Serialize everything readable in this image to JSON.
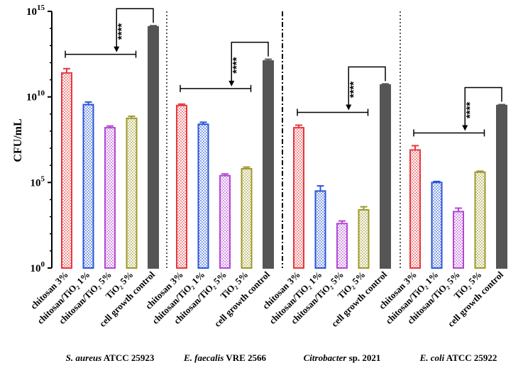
{
  "chart_data": {
    "type": "bar",
    "title": "",
    "ylabel": "CFU/mL",
    "xlabel": "",
    "yscale": "log",
    "ylim": [
      1,
      1000000000000000.0
    ],
    "yticks": [
      {
        "base": "10",
        "exp": "0",
        "value": 1
      },
      {
        "base": "10",
        "exp": "5",
        "value": 100000
      },
      {
        "base": "10",
        "exp": "10",
        "value": 10000000000
      },
      {
        "base": "10",
        "exp": "15",
        "value": 1000000000000000
      }
    ],
    "significance_label": "****",
    "series": [
      {
        "name": "chitosan 3%",
        "color": "#e8383d",
        "pattern": "check"
      },
      {
        "name": "chitosan/TiO₂ 1%",
        "color": "#2a55d8",
        "pattern": "check"
      },
      {
        "name": "chitosan/TiO₂ 5%",
        "color": "#b347d4",
        "pattern": "check"
      },
      {
        "name": "TiO₂ 5%",
        "color": "#9e9a2b",
        "pattern": "check"
      },
      {
        "name": "cell growth control",
        "color": "#555555",
        "pattern": "solid"
      }
    ],
    "groups": [
      {
        "organism_italic": "S. aureus",
        "organism_rest": " ATCC 25923",
        "log_values": [
          11.4,
          9.55,
          8.2,
          8.75,
          14.1
        ],
        "log_err": [
          0.25,
          0.15,
          0.1,
          0.12,
          0.06
        ]
      },
      {
        "organism_italic": "E. faecalis",
        "organism_rest": " VRE 2566",
        "log_values": [
          9.5,
          8.4,
          5.4,
          5.8,
          12.1
        ],
        "log_err": [
          0.08,
          0.12,
          0.1,
          0.1,
          0.1
        ]
      },
      {
        "organism_italic": "Citrobacter",
        "organism_rest": " sp. 2021",
        "log_values": [
          8.2,
          4.5,
          2.6,
          3.4,
          10.7
        ],
        "log_err": [
          0.15,
          0.3,
          0.15,
          0.18,
          0.06
        ]
      },
      {
        "organism_italic": "E. coli",
        "organism_rest": " ATCC 25922",
        "log_values": [
          6.9,
          5.0,
          3.3,
          5.6,
          9.5
        ],
        "log_err": [
          0.25,
          0.06,
          0.2,
          0.06,
          0.05
        ]
      }
    ]
  }
}
